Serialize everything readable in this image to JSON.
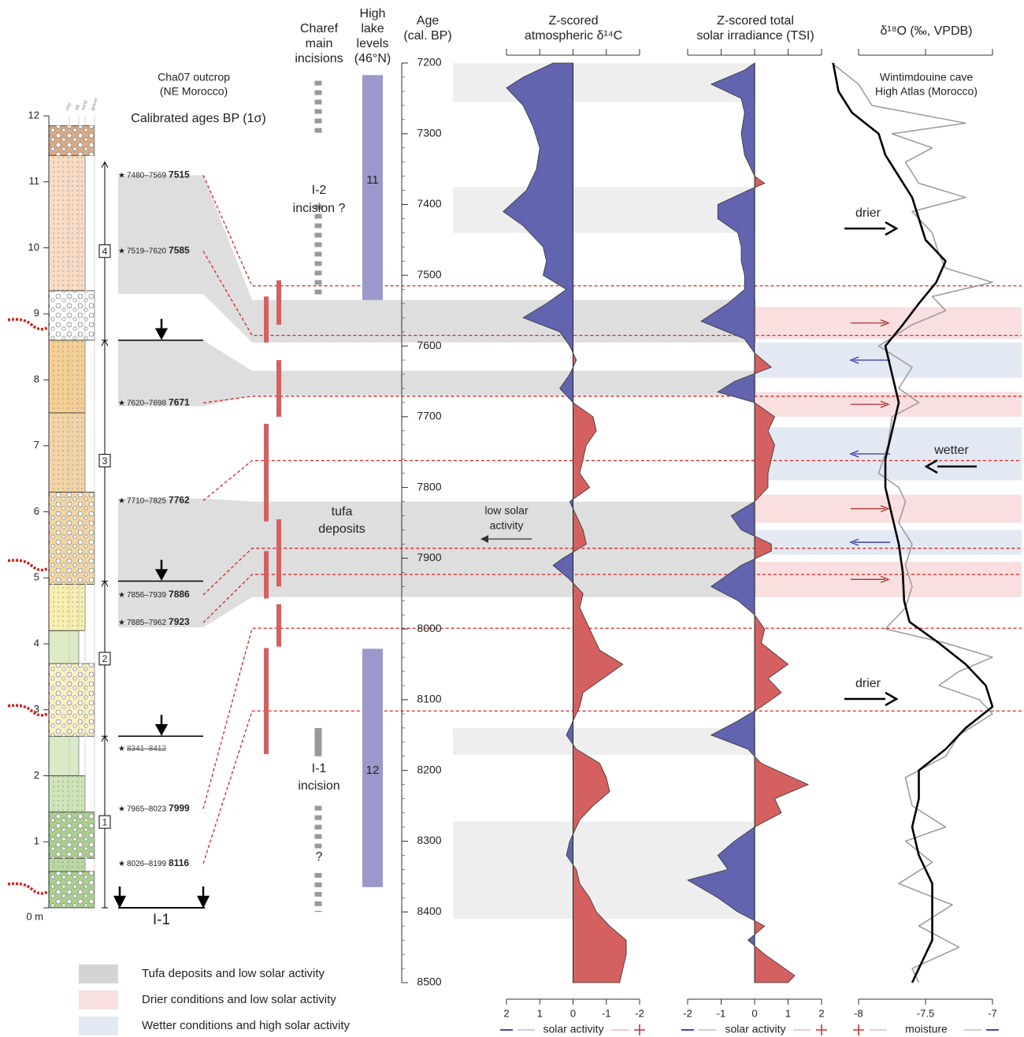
{
  "header": {
    "outcrop": [
      "Cha07 outcrop",
      "(NE Morocco)"
    ],
    "ages": "Calibrated ages BP (1σ)",
    "charef": [
      "Charef",
      "main",
      "incisions"
    ],
    "lake": [
      "High",
      "lake",
      "levels",
      "(46°N)"
    ],
    "cave": [
      "Wintimdouine cave",
      "High Atlas (Morocco)"
    ]
  },
  "age_axis": {
    "label": [
      "Age",
      "(cal. BP)"
    ],
    "ylim": [
      7200,
      8500
    ],
    "yticks": [
      7200,
      7300,
      7400,
      7500,
      7600,
      7700,
      7800,
      7900,
      8000,
      8100,
      8200,
      8300,
      8400,
      8500
    ]
  },
  "column": {
    "ylim": [
      0,
      12
    ],
    "yticks": [
      {
        "value": 0,
        "label": "0 m"
      },
      1,
      2,
      3,
      4,
      5,
      6,
      7,
      8,
      9,
      10,
      11,
      12
    ],
    "grain_labels": [
      "clay",
      "silt",
      "sand",
      "gravel"
    ],
    "layers": [
      {
        "bottom": 0,
        "top": 0.55,
        "color": "#a9d08e",
        "grain": "gravel"
      },
      {
        "bottom": 0.55,
        "top": 0.75,
        "color": "#b9d9a2",
        "grain": "sand"
      },
      {
        "bottom": 0.75,
        "top": 1.45,
        "color": "#a9d08e",
        "grain": "gravel"
      },
      {
        "bottom": 1.45,
        "top": 2.0,
        "color": "#cfe5b9",
        "grain": "sand"
      },
      {
        "bottom": 2.0,
        "top": 2.6,
        "color": "#d8eac6",
        "grain": "silt"
      },
      {
        "bottom": 2.6,
        "top": 3.7,
        "color": "#fbf1c4",
        "grain": "gravel"
      },
      {
        "bottom": 3.7,
        "top": 4.2,
        "color": "#dcebc4",
        "grain": "silt"
      },
      {
        "bottom": 4.2,
        "top": 4.9,
        "color": "#f8eeb0",
        "grain": "sand"
      },
      {
        "bottom": 4.9,
        "top": 6.3,
        "color": "#f3d6a4",
        "grain": "gravel"
      },
      {
        "bottom": 6.3,
        "top": 7.5,
        "color": "#f2d5a5",
        "grain": "sand"
      },
      {
        "bottom": 7.5,
        "top": 8.6,
        "color": "#f6cf94",
        "grain": "sand"
      },
      {
        "bottom": 8.6,
        "top": 9.35,
        "color": "#ffffff",
        "grain": "gravel"
      },
      {
        "bottom": 9.35,
        "top": 11.4,
        "color": "#f9dcc3",
        "grain": "sand"
      },
      {
        "bottom": 11.4,
        "top": 11.85,
        "color": "#d9aa86",
        "grain": "gravel"
      }
    ],
    "units": [
      {
        "label": "1",
        "bottom": 0,
        "top": 2.6
      },
      {
        "label": "2",
        "bottom": 2.6,
        "top": 4.95
      },
      {
        "label": "3",
        "bottom": 4.95,
        "top": 8.6
      },
      {
        "label": "4",
        "bottom": 8.6,
        "top": 11.3
      }
    ],
    "boundaries": [
      2.6,
      4.95,
      8.6
    ],
    "erosion_depths": [
      0.25,
      2.95,
      5.15,
      8.8
    ],
    "base_label": "I-1",
    "samples": [
      {
        "range": "7480–7569",
        "age": 7515,
        "depth": 11.1
      },
      {
        "range": "7519–7620",
        "age": 7585,
        "depth": 9.95
      },
      {
        "range": "7620–7698",
        "age": 7671,
        "depth": 7.65
      },
      {
        "range": "7710–7825",
        "age": 7762,
        "depth": 6.17
      },
      {
        "range": "7856–7939",
        "age": 7886,
        "depth": 4.74
      },
      {
        "range": "7885–7962",
        "age": 7923,
        "depth": 4.32
      },
      {
        "range": "7965–8023",
        "age": 7999,
        "depth": 1.5
      },
      {
        "range": "8026–8199",
        "age": 8116,
        "depth": 0.67
      },
      {
        "range": "8341–8412",
        "depth": 2.41,
        "rejected": true
      }
    ]
  },
  "tufa_bars": [
    [
      [
        7530,
        7595
      ],
      [
        7710,
        7848
      ],
      [
        7890,
        7957
      ],
      [
        8027,
        8177
      ]
    ],
    [
      [
        7507,
        7570
      ],
      [
        7620,
        7700
      ],
      [
        7845,
        7940
      ],
      [
        7965,
        8025
      ]
    ]
  ],
  "tufa_bar_color": "#d4615f",
  "charef": {
    "color": "#999999",
    "segments": [
      {
        "start": 7225,
        "end": 7300,
        "style": "dashed"
      },
      {
        "start": 7400,
        "end": 7530,
        "style": "dashed"
      },
      {
        "start": 8140,
        "end": 8180,
        "style": "solid"
      },
      {
        "start": 8250,
        "end": 8310,
        "style": "dashed"
      },
      {
        "start": 8345,
        "end": 8400,
        "style": "dashed"
      }
    ]
  },
  "lake_levels": {
    "color": "#9b98cc",
    "bars": [
      {
        "label": "11",
        "start": 7217,
        "end": 7535
      },
      {
        "label": "12",
        "start": 8028,
        "end": 8365
      }
    ]
  },
  "bands": {
    "gray": [
      {
        "start": 7200,
        "end": 7255,
        "color": "#eeeeee"
      },
      {
        "start": 7375,
        "end": 7440,
        "color": "#eeeeee"
      },
      {
        "start": 7535,
        "end": 7595,
        "color": "#dedede",
        "depths": [
          9.3,
          11.1
        ]
      },
      {
        "start": 7635,
        "end": 7670,
        "color": "#dedede",
        "depths": [
          7.6,
          8.6
        ]
      },
      {
        "start": 7820,
        "end": 7955,
        "color": "#dedede",
        "depths": [
          4.25,
          6.2
        ]
      },
      {
        "start": 8140,
        "end": 8178,
        "color": "#eeeeee"
      },
      {
        "start": 8272,
        "end": 8410,
        "color": "#eeeeee"
      }
    ],
    "drier": [
      [
        7545,
        7590
      ],
      [
        7665,
        7700
      ],
      [
        7810,
        7850
      ],
      [
        7905,
        7955
      ]
    ],
    "wetter": [
      [
        7595,
        7645
      ],
      [
        7715,
        7790
      ],
      [
        7860,
        7895
      ]
    ],
    "drier_color": "#f9dfe0",
    "wetter_color": "#e3e9f3",
    "link_color": "#e02020"
  },
  "annotations": {
    "i2": [
      "I-2",
      "incision ?"
    ],
    "i1": [
      "I-1",
      "incision"
    ],
    "q": "?",
    "tufa": [
      "tufa",
      "deposits"
    ],
    "low_solar": [
      "low solar",
      "activity"
    ],
    "drier_top": "drier",
    "wetter": "wetter",
    "drier_bottom": "drier"
  },
  "chart_data": [
    {
      "type": "area",
      "title": [
        "Z-scored",
        "atmospheric δ¹⁴C"
      ],
      "ages": [
        7200,
        7220,
        7235,
        7260,
        7290,
        7320,
        7350,
        7380,
        7410,
        7430,
        7460,
        7480,
        7500,
        7520,
        7540,
        7560,
        7580,
        7600,
        7620,
        7640,
        7660,
        7680,
        7700,
        7720,
        7740,
        7760,
        7780,
        7800,
        7820,
        7840,
        7860,
        7880,
        7900,
        7910,
        7930,
        7950,
        7970,
        7990,
        8010,
        8030,
        8050,
        8070,
        8090,
        8110,
        8130,
        8150,
        8170,
        8190,
        8210,
        8230,
        8250,
        8270,
        8290,
        8300,
        8320,
        8340,
        8360,
        8380,
        8400,
        8420,
        8440,
        8460,
        8480,
        8500
      ],
      "values": [
        0.6,
        1.5,
        2.0,
        1.5,
        1.2,
        1.0,
        1.1,
        1.4,
        2.1,
        1.5,
        0.9,
        0.8,
        0.9,
        0.2,
        0.8,
        1.5,
        0.4,
        0.1,
        -0.1,
        0.1,
        0.4,
        0.0,
        -0.6,
        -0.7,
        -0.4,
        -0.3,
        -0.2,
        -0.5,
        0.1,
        -0.1,
        -0.3,
        -0.4,
        0.3,
        0.6,
        0.1,
        -0.3,
        -0.2,
        -0.4,
        -0.6,
        -0.8,
        -1.5,
        -0.9,
        -0.3,
        -0.2,
        0.0,
        0.2,
        -0.1,
        -0.8,
        -1.0,
        -1.1,
        -0.6,
        -0.2,
        0.0,
        0.1,
        0.2,
        -0.1,
        -0.2,
        -0.5,
        -0.7,
        -1.1,
        -1.6,
        -1.6,
        -1.5,
        -1.4
      ],
      "xlim": [
        2,
        -2
      ],
      "xticks": [
        2,
        1,
        0,
        -1,
        -2
      ],
      "colors": {
        "positive": "#6264b0",
        "negative": "#d4615f"
      },
      "footer": "solar activity"
    },
    {
      "type": "area",
      "title": [
        "Z-scored total",
        "solar irradiance (TSI)"
      ],
      "ages": [
        7200,
        7210,
        7230,
        7250,
        7270,
        7300,
        7330,
        7360,
        7370,
        7380,
        7400,
        7420,
        7440,
        7460,
        7480,
        7500,
        7520,
        7540,
        7565,
        7590,
        7610,
        7630,
        7650,
        7665,
        7680,
        7700,
        7720,
        7740,
        7760,
        7780,
        7800,
        7820,
        7840,
        7860,
        7880,
        7890,
        7910,
        7940,
        7960,
        7980,
        8000,
        8020,
        8050,
        8070,
        8090,
        8110,
        8130,
        8150,
        8170,
        8190,
        8220,
        8240,
        8260,
        8280,
        8300,
        8320,
        8340,
        8355,
        8380,
        8400,
        8420,
        8440,
        8460,
        8480,
        8490,
        8500
      ],
      "values": [
        0,
        -0.3,
        -1.3,
        -0.4,
        -0.3,
        -0.4,
        -0.3,
        0.0,
        0.3,
        -0.2,
        -1.1,
        -1.1,
        -0.5,
        -0.4,
        -0.4,
        -0.3,
        -0.3,
        -0.8,
        -1.6,
        -0.3,
        0.0,
        0.5,
        -0.6,
        -1.1,
        0.0,
        0.6,
        0.4,
        0.6,
        0.5,
        0.4,
        0.4,
        0.0,
        -0.7,
        -0.4,
        0.5,
        0.5,
        -0.4,
        -1.3,
        -0.5,
        0.0,
        0.3,
        0.2,
        1.0,
        0.4,
        0.8,
        0.2,
        -0.5,
        -1.3,
        -0.2,
        0.2,
        1.6,
        0.6,
        0.8,
        0.0,
        -0.6,
        -1.1,
        -0.8,
        -2.0,
        -1.1,
        -0.5,
        0.3,
        -0.2,
        0.3,
        0.9,
        1.2,
        1.0
      ],
      "xlim": [
        -2,
        2
      ],
      "xticks": [
        -2,
        -1,
        0,
        1,
        2
      ],
      "colors": {
        "positive": "#d4615f",
        "negative": "#6264b0"
      },
      "footer": "solar activity"
    },
    {
      "type": "line",
      "title": [
        "δ¹⁸O (‰, VPDB)"
      ],
      "xlim": [
        -8,
        -7
      ],
      "xticks": [
        -8,
        -7.5,
        -7
      ],
      "series": [
        {
          "color": "#999999",
          "ages": [
            7200,
            7230,
            7260,
            7285,
            7300,
            7320,
            7340,
            7370,
            7390,
            7410,
            7440,
            7470,
            7490,
            7510,
            7530,
            7550,
            7570,
            7600,
            7630,
            7660,
            7680,
            7700,
            7740,
            7780,
            7800,
            7820,
            7850,
            7880,
            7910,
            7940,
            7970,
            8000,
            8020,
            8040,
            8060,
            8080,
            8100,
            8120,
            8150,
            8180,
            8210,
            8250,
            8280,
            8300,
            8330,
            8360,
            8390,
            8420,
            8450,
            8480,
            8500
          ],
          "values": [
            -8.2,
            -8.0,
            -7.9,
            -7.2,
            -7.75,
            -7.45,
            -7.65,
            -7.55,
            -7.2,
            -7.6,
            -7.45,
            -7.4,
            -7.35,
            -7.0,
            -7.45,
            -7.35,
            -7.6,
            -7.85,
            -7.6,
            -7.7,
            -7.55,
            -7.75,
            -7.78,
            -7.85,
            -7.7,
            -7.65,
            -7.7,
            -7.6,
            -7.65,
            -7.6,
            -7.65,
            -7.8,
            -7.35,
            -7.0,
            -7.25,
            -7.4,
            -7.1,
            -7.0,
            -7.25,
            -7.35,
            -7.65,
            -7.6,
            -7.35,
            -7.65,
            -7.45,
            -7.7,
            -7.3,
            -7.55,
            -7.25,
            -7.6,
            -7.55
          ]
        },
        {
          "color": "#000000",
          "ages": [
            7200,
            7240,
            7270,
            7300,
            7330,
            7360,
            7390,
            7420,
            7450,
            7480,
            7510,
            7540,
            7570,
            7600,
            7640,
            7680,
            7720,
            7760,
            7800,
            7840,
            7880,
            7920,
            7960,
            7990,
            8020,
            8050,
            8080,
            8110,
            8140,
            8170,
            8200,
            8240,
            8280,
            8320,
            8360,
            8400,
            8440,
            8480,
            8500
          ],
          "values": [
            -8.19,
            -8.15,
            -8.05,
            -7.85,
            -7.8,
            -7.7,
            -7.6,
            -7.55,
            -7.5,
            -7.35,
            -7.42,
            -7.55,
            -7.67,
            -7.8,
            -7.75,
            -7.7,
            -7.75,
            -7.8,
            -7.8,
            -7.75,
            -7.7,
            -7.67,
            -7.66,
            -7.62,
            -7.4,
            -7.2,
            -7.05,
            -7.0,
            -7.2,
            -7.35,
            -7.55,
            -7.55,
            -7.6,
            -7.55,
            -7.45,
            -7.45,
            -7.45,
            -7.55,
            -7.6
          ]
        }
      ],
      "footer": "moisture"
    }
  ],
  "legend": [
    {
      "text": "Tufa deposits and low solar activity",
      "color": "#d4d4d4"
    },
    {
      "text": "Drier conditions and low solar activity",
      "color": "#f9dfe0"
    },
    {
      "text": "Wetter conditions and high solar activity",
      "color": "#e3e9f3"
    }
  ]
}
